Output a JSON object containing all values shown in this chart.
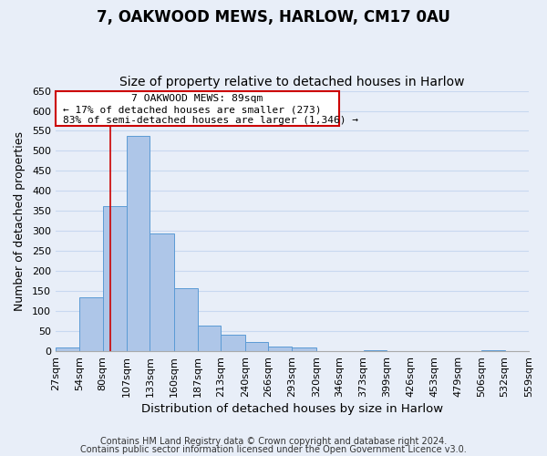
{
  "title": "7, OAKWOOD MEWS, HARLOW, CM17 0AU",
  "subtitle": "Size of property relative to detached houses in Harlow",
  "xlabel": "Distribution of detached houses by size in Harlow",
  "ylabel": "Number of detached properties",
  "bin_edges": [
    27,
    54,
    80,
    107,
    133,
    160,
    187,
    213,
    240,
    266,
    293,
    320,
    346,
    373,
    399,
    426,
    453,
    479,
    506,
    532,
    559
  ],
  "bar_heights": [
    10,
    135,
    362,
    538,
    293,
    158,
    65,
    40,
    22,
    12,
    10,
    0,
    0,
    2,
    0,
    0,
    0,
    0,
    2,
    0
  ],
  "bar_color": "#aec6e8",
  "bar_edge_color": "#5b9bd5",
  "property_line_x": 89,
  "property_line_color": "#cc0000",
  "annotation_line1": "7 OAKWOOD MEWS: 89sqm",
  "annotation_line2": "← 17% of detached houses are smaller (273)",
  "annotation_line3": "83% of semi-detached houses are larger (1,346) →",
  "ylim": [
    0,
    650
  ],
  "yticks": [
    0,
    50,
    100,
    150,
    200,
    250,
    300,
    350,
    400,
    450,
    500,
    550,
    600,
    650
  ],
  "background_color": "#e8eef8",
  "grid_color": "#c8d8f0",
  "footnote1": "Contains HM Land Registry data © Crown copyright and database right 2024.",
  "footnote2": "Contains public sector information licensed under the Open Government Licence v3.0.",
  "title_fontsize": 12,
  "subtitle_fontsize": 10,
  "xlabel_fontsize": 9.5,
  "ylabel_fontsize": 9,
  "tick_fontsize": 8,
  "footnote_fontsize": 7
}
